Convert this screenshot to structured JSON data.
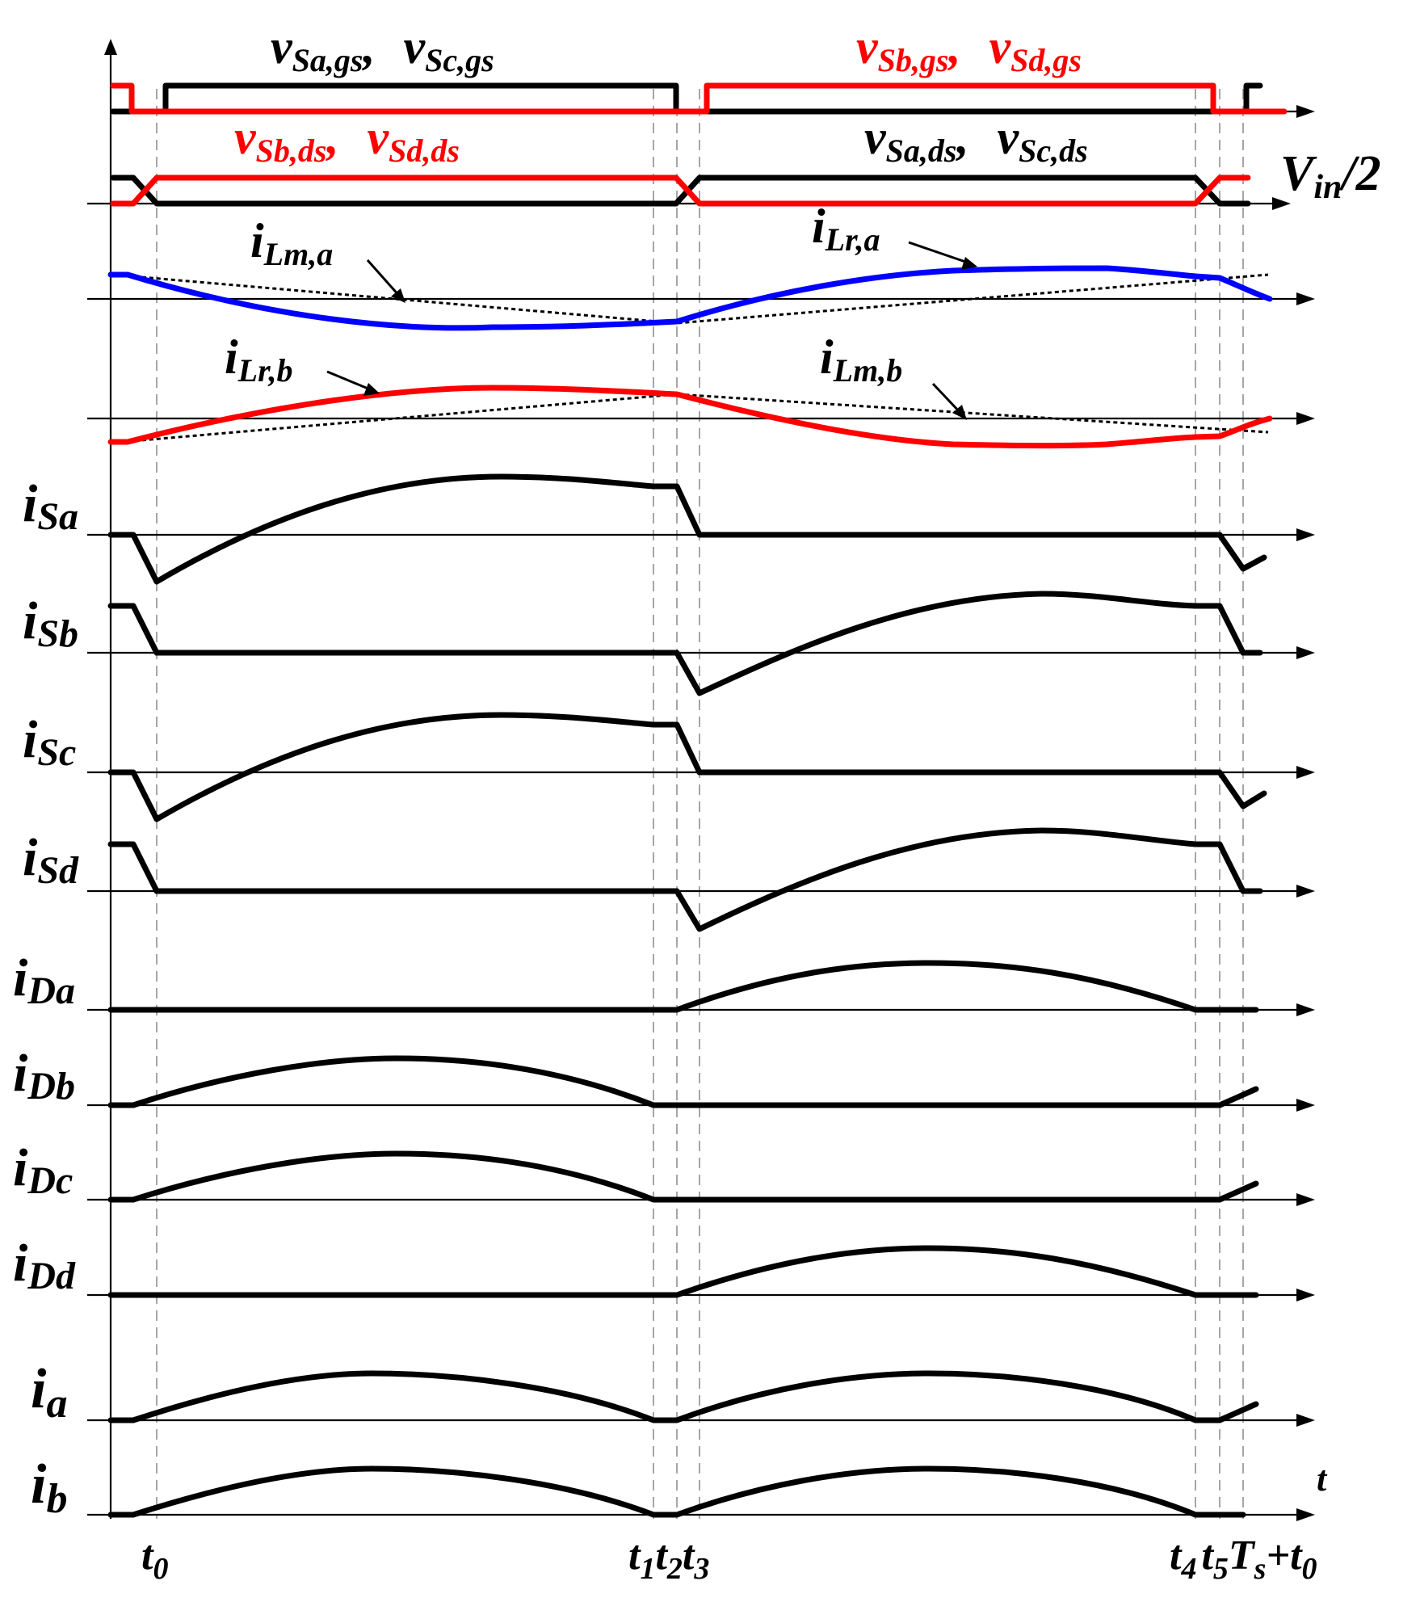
{
  "colors": {
    "black": "#000000",
    "red": "#ff0000",
    "blue": "#0000ff",
    "guide": "#a6a6a6"
  },
  "gate_labels": {
    "sa_sc_gs": {
      "main1": "v",
      "sub1": "Sa,gs",
      "sep": ",",
      "main2": "v",
      "sub2": "Sc,gs"
    },
    "sb_sd_gs": {
      "main1": "v",
      "sub1": "Sb,gs",
      "sep": ",",
      "main2": "v",
      "sub2": "Sd,gs"
    }
  },
  "ds_labels": {
    "sb_sd_ds": {
      "main1": "v",
      "sub1": "Sb,ds",
      "sep": ",",
      "main2": "v",
      "sub2": "Sd,ds"
    },
    "sa_sc_ds": {
      "main1": "v",
      "sub1": "Sa,ds",
      "sep": ",",
      "main2": "v",
      "sub2": "Sc,ds"
    },
    "vin": {
      "main": "V",
      "sub": "in",
      "suffix": "/2"
    }
  },
  "inductor_labels": {
    "ilm_a": {
      "main": "i",
      "sub": "Lm,a"
    },
    "ilr_a": {
      "main": "i",
      "sub": "Lr,a"
    },
    "ilr_b": {
      "main": "i",
      "sub": "Lr,b"
    },
    "ilm_b": {
      "main": "i",
      "sub": "Lm,b"
    }
  },
  "current_rows": [
    {
      "main": "i",
      "sub": "Sa"
    },
    {
      "main": "i",
      "sub": "Sb"
    },
    {
      "main": "i",
      "sub": "Sc"
    },
    {
      "main": "i",
      "sub": "Sd"
    },
    {
      "main": "i",
      "sub": "Da"
    },
    {
      "main": "i",
      "sub": "Db"
    },
    {
      "main": "i",
      "sub": "Dc"
    },
    {
      "main": "i",
      "sub": "Dd"
    },
    {
      "main": "i",
      "sub": "a"
    },
    {
      "main": "i",
      "sub": "b"
    }
  ],
  "time_axis": {
    "label": "t",
    "instants": [
      {
        "main": "t",
        "sub": "0"
      },
      {
        "main": "t",
        "sub": "1"
      },
      {
        "main": "t",
        "sub": "2"
      },
      {
        "main": "t",
        "sub": "3"
      },
      {
        "main": "t",
        "sub": "4"
      },
      {
        "main": "t",
        "sub": "5"
      },
      {
        "main": "T",
        "sub": "s",
        "suffix": "+t",
        "suffix_sub": "0"
      }
    ]
  }
}
